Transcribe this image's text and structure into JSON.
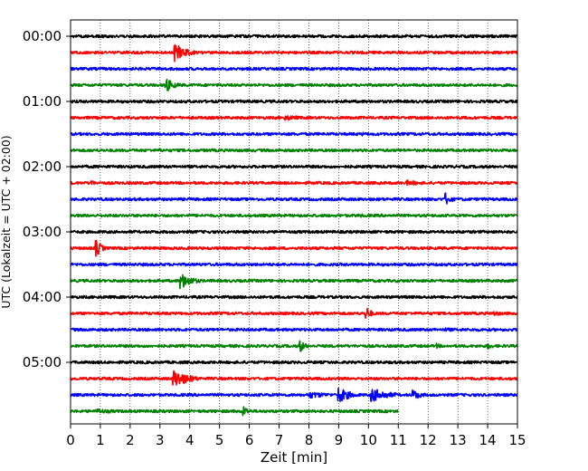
{
  "chart_data": {
    "type": "line",
    "title": "",
    "xlabel": "Zeit  [min]",
    "ylabel": "UTC (Lokalzeit = UTC + 02:00)",
    "xlim": [
      0,
      15
    ],
    "x_ticks": [
      "0",
      "1",
      "2",
      "3",
      "4",
      "5",
      "6",
      "7",
      "8",
      "9",
      "10",
      "11",
      "12",
      "13",
      "14",
      "15"
    ],
    "y_ticks": [
      "00:00",
      "01:00",
      "02:00",
      "03:00",
      "04:00",
      "05:00"
    ],
    "grid": "vertical dotted lines at each minute",
    "trace_interval_minutes": 15,
    "trace_colors": [
      "#000000",
      "#ff0000",
      "#0000ff",
      "#008000"
    ],
    "traces": [
      {
        "start": "00:00",
        "color": "#000000",
        "end_min": 15,
        "events": []
      },
      {
        "start": "00:15",
        "color": "#ff0000",
        "end_min": 15,
        "events": [
          {
            "t": 3.5,
            "amp": 10,
            "dur": 0.4
          }
        ]
      },
      {
        "start": "00:30",
        "color": "#0000ff",
        "end_min": 15,
        "events": []
      },
      {
        "start": "00:45",
        "color": "#008000",
        "end_min": 15,
        "events": [
          {
            "t": 3.2,
            "amp": 8,
            "dur": 0.3
          }
        ]
      },
      {
        "start": "01:00",
        "color": "#000000",
        "end_min": 15,
        "events": []
      },
      {
        "start": "01:15",
        "color": "#ff0000",
        "end_min": 15,
        "events": [
          {
            "t": 7.2,
            "amp": 3,
            "dur": 0.8
          }
        ]
      },
      {
        "start": "01:30",
        "color": "#0000ff",
        "end_min": 15,
        "events": [
          {
            "t": 9.8,
            "amp": 2,
            "dur": 0.5
          }
        ]
      },
      {
        "start": "01:45",
        "color": "#008000",
        "end_min": 15,
        "events": [
          {
            "t": 3.0,
            "amp": 2,
            "dur": 0.6
          }
        ]
      },
      {
        "start": "02:00",
        "color": "#000000",
        "end_min": 15,
        "events": []
      },
      {
        "start": "02:15",
        "color": "#ff0000",
        "end_min": 15,
        "events": [
          {
            "t": 0.7,
            "amp": 5,
            "dur": 0.1
          },
          {
            "t": 11.3,
            "amp": 3,
            "dur": 0.8
          }
        ]
      },
      {
        "start": "02:30",
        "color": "#0000ff",
        "end_min": 15,
        "events": [
          {
            "t": 12.6,
            "amp": 7,
            "dur": 0.2
          }
        ]
      },
      {
        "start": "02:45",
        "color": "#008000",
        "end_min": 15,
        "events": [
          {
            "t": 9.7,
            "amp": 2,
            "dur": 0.6
          }
        ]
      },
      {
        "start": "03:00",
        "color": "#000000",
        "end_min": 15,
        "events": []
      },
      {
        "start": "03:15",
        "color": "#ff0000",
        "end_min": 15,
        "events": [
          {
            "t": 0.85,
            "amp": 10,
            "dur": 0.2
          }
        ]
      },
      {
        "start": "03:30",
        "color": "#0000ff",
        "end_min": 15,
        "events": []
      },
      {
        "start": "03:45",
        "color": "#008000",
        "end_min": 15,
        "events": [
          {
            "t": 3.7,
            "amp": 9,
            "dur": 0.4
          }
        ]
      },
      {
        "start": "04:00",
        "color": "#000000",
        "end_min": 15,
        "events": []
      },
      {
        "start": "04:15",
        "color": "#ff0000",
        "end_min": 15,
        "events": [
          {
            "t": 9.9,
            "amp": 8,
            "dur": 0.2
          },
          {
            "t": 14.2,
            "amp": 3,
            "dur": 0.4
          }
        ]
      },
      {
        "start": "04:30",
        "color": "#0000ff",
        "end_min": 15,
        "events": [
          {
            "t": 12.6,
            "amp": 2,
            "dur": 1.0
          }
        ]
      },
      {
        "start": "04:45",
        "color": "#008000",
        "end_min": 15,
        "events": [
          {
            "t": 7.7,
            "amp": 7,
            "dur": 0.2
          },
          {
            "t": 12.3,
            "amp": 3,
            "dur": 0.2
          },
          {
            "t": 14.0,
            "amp": 4,
            "dur": 0.2
          }
        ]
      },
      {
        "start": "05:00",
        "color": "#000000",
        "end_min": 15,
        "events": []
      },
      {
        "start": "05:15",
        "color": "#ff0000",
        "end_min": 15,
        "events": [
          {
            "t": 3.45,
            "amp": 11,
            "dur": 0.5
          }
        ]
      },
      {
        "start": "05:30",
        "color": "#0000ff",
        "end_min": 15,
        "events": [
          {
            "t": 8.0,
            "amp": 4,
            "dur": 0.8
          },
          {
            "t": 9.0,
            "amp": 9,
            "dur": 0.4
          },
          {
            "t": 10.1,
            "amp": 8,
            "dur": 0.6
          },
          {
            "t": 11.5,
            "amp": 6,
            "dur": 0.3
          }
        ]
      },
      {
        "start": "05:45",
        "color": "#008000",
        "end_min": 11,
        "events": [
          {
            "t": 0.9,
            "amp": 3,
            "dur": 0.8
          },
          {
            "t": 5.8,
            "amp": 6,
            "dur": 0.2
          }
        ]
      }
    ]
  }
}
